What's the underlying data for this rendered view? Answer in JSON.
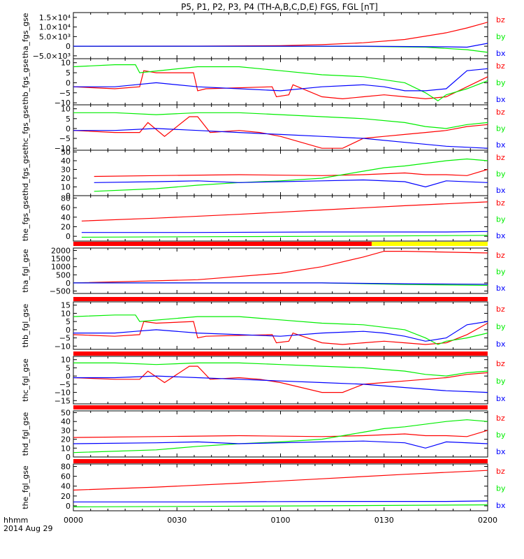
{
  "title": "P5, P1, P2, P3, P4 (TH-A,B,C,D,E) FGS, FGL [nT]",
  "footer": {
    "time_label": "hhmm",
    "date_label": "2014 Aug 29"
  },
  "x_ticks": [
    "0000",
    "0030",
    "0100",
    "0130",
    "0200"
  ],
  "colors": {
    "bx": "#0000ff",
    "by": "#00ee00",
    "bz": "#ff0000",
    "axis": "#000000",
    "mode_bar": "#ff0000",
    "mode_bar_alt": "#ffff00"
  },
  "chart_data": [
    {
      "type": "line",
      "ylabel": "tha_fgs_gse",
      "yticks": [
        {
          "v": 15000,
          "t": "1.5×10⁴"
        },
        {
          "v": 10000,
          "t": "1.0×10⁴"
        },
        {
          "v": 5000,
          "t": "5.0×10³"
        },
        {
          "v": 0,
          "t": "0"
        },
        {
          "v": -5000,
          "t": "−5.0×10³"
        }
      ],
      "ylim": [
        -6500,
        17500
      ],
      "x_range": [
        0.0,
        1.0
      ],
      "series": [
        {
          "name": "bz",
          "x": [
            0.0,
            0.3,
            0.5,
            0.6,
            0.7,
            0.8,
            0.9,
            0.95,
            1.0
          ],
          "y": [
            0,
            50,
            300,
            800,
            1800,
            3500,
            7000,
            9500,
            12500
          ]
        },
        {
          "name": "by",
          "x": [
            0.0,
            0.5,
            0.7,
            0.85,
            0.95,
            1.0
          ],
          "y": [
            0,
            0,
            -100,
            -500,
            -1800,
            -3200
          ]
        },
        {
          "name": "bx",
          "x": [
            0.0,
            0.5,
            0.7,
            0.9,
            0.95,
            1.0
          ],
          "y": [
            0,
            0,
            0,
            -300,
            -500,
            1500
          ]
        }
      ]
    },
    {
      "type": "line",
      "ylabel": "thb_fgs_gse",
      "yticks": [
        {
          "v": 10,
          "t": "10"
        },
        {
          "v": 5,
          "t": "5"
        },
        {
          "v": 0,
          "t": "0"
        },
        {
          "v": -5,
          "t": "−5"
        },
        {
          "v": -10,
          "t": "−10"
        }
      ],
      "ylim": [
        -11,
        12
      ],
      "x_range": [
        0.0,
        1.0
      ],
      "series": [
        {
          "name": "bz",
          "x": [
            0.0,
            0.1,
            0.16,
            0.17,
            0.2,
            0.29,
            0.3,
            0.32,
            0.48,
            0.49,
            0.52,
            0.53,
            0.6,
            0.65,
            0.7,
            0.75,
            0.8,
            0.85,
            0.9,
            0.95,
            1.0
          ],
          "y": [
            -2,
            -3,
            -2,
            6,
            5,
            5,
            -4,
            -3,
            -2,
            -7,
            -6,
            -1,
            -7,
            -8,
            -7,
            -6,
            -7,
            -8,
            -7,
            -2,
            3
          ]
        },
        {
          "name": "by",
          "x": [
            0.0,
            0.1,
            0.15,
            0.16,
            0.3,
            0.4,
            0.5,
            0.6,
            0.7,
            0.8,
            0.85,
            0.88,
            0.9,
            0.95,
            1.0
          ],
          "y": [
            8,
            9,
            9,
            5,
            8,
            8,
            6,
            4,
            3,
            0,
            -5,
            -9,
            -6,
            -3,
            1
          ]
        },
        {
          "name": "bx",
          "x": [
            0.0,
            0.1,
            0.15,
            0.2,
            0.3,
            0.4,
            0.5,
            0.6,
            0.7,
            0.75,
            0.8,
            0.85,
            0.9,
            0.95,
            1.0
          ],
          "y": [
            -2,
            -2,
            -1,
            0,
            -2,
            -3,
            -4,
            -2,
            -1,
            -2,
            -4,
            -4,
            -3,
            6,
            7
          ]
        }
      ]
    },
    {
      "type": "line",
      "ylabel": "thc_fgs_gse",
      "yticks": [
        {
          "v": 10,
          "t": "10"
        },
        {
          "v": 5,
          "t": "5"
        },
        {
          "v": 0,
          "t": "0"
        },
        {
          "v": -5,
          "t": "−5"
        },
        {
          "v": -10,
          "t": "−10"
        }
      ],
      "ylim": [
        -11,
        12
      ],
      "x_range": [
        0.0,
        1.0
      ],
      "series": [
        {
          "name": "bz",
          "x": [
            0.0,
            0.1,
            0.16,
            0.18,
            0.22,
            0.28,
            0.3,
            0.33,
            0.4,
            0.45,
            0.5,
            0.6,
            0.65,
            0.7,
            0.75,
            0.8,
            0.85,
            0.9,
            0.95,
            1.0
          ],
          "y": [
            -1,
            -2,
            -2,
            3,
            -4,
            6,
            6,
            -2,
            -1,
            -2,
            -4,
            -10,
            -10,
            -5,
            -4,
            -3,
            -2,
            -1,
            1,
            2
          ]
        },
        {
          "name": "by",
          "x": [
            0.0,
            0.1,
            0.2,
            0.3,
            0.4,
            0.5,
            0.6,
            0.7,
            0.8,
            0.85,
            0.9,
            0.95,
            1.0
          ],
          "y": [
            8,
            8,
            7,
            8,
            8,
            7,
            6,
            5,
            3,
            1,
            0,
            2,
            3
          ]
        },
        {
          "name": "bx",
          "x": [
            0.0,
            0.1,
            0.2,
            0.3,
            0.4,
            0.5,
            0.6,
            0.7,
            0.8,
            0.9,
            1.0
          ],
          "y": [
            -1,
            -1,
            0,
            -1,
            -2,
            -3,
            -4,
            -5,
            -7,
            -9,
            -10
          ]
        }
      ]
    },
    {
      "type": "line",
      "ylabel": "thd_fgs_gse",
      "yticks": [
        {
          "v": 50,
          "t": "50"
        },
        {
          "v": 40,
          "t": "40"
        },
        {
          "v": 30,
          "t": "30"
        },
        {
          "v": 20,
          "t": "20"
        },
        {
          "v": 10,
          "t": "10"
        },
        {
          "v": 0,
          "t": "0"
        }
      ],
      "ylim": [
        0,
        52
      ],
      "x_range": [
        0.05,
        1.0
      ],
      "series": [
        {
          "name": "bz",
          "x": [
            0.05,
            0.2,
            0.4,
            0.6,
            0.7,
            0.8,
            0.85,
            0.9,
            0.95,
            1.0
          ],
          "y": [
            22,
            23,
            24,
            23,
            24,
            26,
            24,
            24,
            23,
            30
          ]
        },
        {
          "name": "by",
          "x": [
            0.05,
            0.2,
            0.3,
            0.4,
            0.5,
            0.6,
            0.7,
            0.75,
            0.8,
            0.9,
            0.95,
            1.0
          ],
          "y": [
            5,
            8,
            12,
            15,
            17,
            20,
            28,
            32,
            34,
            40,
            42,
            40
          ]
        },
        {
          "name": "bx",
          "x": [
            0.05,
            0.2,
            0.3,
            0.4,
            0.5,
            0.6,
            0.7,
            0.8,
            0.85,
            0.9,
            1.0
          ],
          "y": [
            15,
            16,
            17,
            15,
            16,
            17,
            18,
            16,
            10,
            17,
            15
          ]
        }
      ]
    },
    {
      "type": "line",
      "ylabel": "the_fgs_gse",
      "yticks": [
        {
          "v": 80,
          "t": "80"
        },
        {
          "v": 60,
          "t": "60"
        },
        {
          "v": 40,
          "t": "40"
        },
        {
          "v": 20,
          "t": "20"
        },
        {
          "v": 0,
          "t": "0"
        }
      ],
      "ylim": [
        -10,
        85
      ],
      "x_range": [
        0.02,
        1.0
      ],
      "series": [
        {
          "name": "bz",
          "x": [
            0.02,
            0.2,
            0.4,
            0.6,
            0.8,
            1.0
          ],
          "y": [
            32,
            38,
            46,
            55,
            64,
            72
          ]
        },
        {
          "name": "by",
          "x": [
            0.02,
            0.3,
            0.6,
            1.0
          ],
          "y": [
            -2,
            -1,
            0,
            2
          ]
        },
        {
          "name": "bx",
          "x": [
            0.02,
            0.3,
            0.6,
            0.9,
            1.0
          ],
          "y": [
            8,
            8,
            9,
            9,
            10
          ]
        }
      ]
    },
    {
      "type": "line",
      "ylabel": "tha_fgl_gse",
      "yticks": [
        {
          "v": 2000,
          "t": "2000"
        },
        {
          "v": 1500,
          "t": "1500"
        },
        {
          "v": 1000,
          "t": "1000"
        },
        {
          "v": 500,
          "t": "500"
        },
        {
          "v": 0,
          "t": "0"
        },
        {
          "v": -500,
          "t": "−500"
        }
      ],
      "ylim": [
        -650,
        2150
      ],
      "x_range": [
        0.0,
        1.0
      ],
      "series": [
        {
          "name": "bz",
          "x": [
            0.0,
            0.3,
            0.5,
            0.6,
            0.7,
            0.75,
            0.8,
            1.0
          ],
          "y": [
            0,
            200,
            600,
            1000,
            1600,
            1950,
            1950,
            1850
          ]
        },
        {
          "name": "by",
          "x": [
            0.0,
            0.6,
            0.8,
            1.0
          ],
          "y": [
            0,
            0,
            -100,
            -150
          ]
        },
        {
          "name": "bx",
          "x": [
            0.0,
            0.6,
            0.8,
            1.0
          ],
          "y": [
            0,
            0,
            -50,
            -80
          ]
        }
      ]
    },
    {
      "type": "line",
      "ylabel": "thb_fgl_gse",
      "yticks": [
        {
          "v": 15,
          "t": "15"
        },
        {
          "v": 10,
          "t": "10"
        },
        {
          "v": 5,
          "t": "5"
        },
        {
          "v": 0,
          "t": "0"
        },
        {
          "v": -5,
          "t": "−5"
        },
        {
          "v": -10,
          "t": "−10"
        }
      ],
      "ylim": [
        -12,
        17
      ],
      "x_range": [
        0.0,
        1.0
      ],
      "series": [
        {
          "name": "bz",
          "x": [
            0.0,
            0.1,
            0.16,
            0.17,
            0.2,
            0.29,
            0.3,
            0.32,
            0.48,
            0.49,
            0.52,
            0.53,
            0.6,
            0.65,
            0.7,
            0.75,
            0.8,
            0.85,
            0.9,
            0.95,
            1.0
          ],
          "y": [
            -3,
            -4,
            -3,
            5,
            4,
            5,
            -5,
            -4,
            -3,
            -8,
            -7,
            -2,
            -8,
            -9,
            -8,
            -7,
            -8,
            -9,
            -8,
            -3,
            4
          ]
        },
        {
          "name": "by",
          "x": [
            0.0,
            0.1,
            0.15,
            0.16,
            0.3,
            0.4,
            0.5,
            0.6,
            0.7,
            0.8,
            0.85,
            0.88,
            0.9,
            0.95,
            1.0
          ],
          "y": [
            8,
            9,
            9,
            5,
            8,
            8,
            6,
            4,
            3,
            0,
            -5,
            -9,
            -7,
            -5,
            -2
          ]
        },
        {
          "name": "bx",
          "x": [
            0.0,
            0.1,
            0.15,
            0.2,
            0.3,
            0.4,
            0.5,
            0.6,
            0.7,
            0.75,
            0.8,
            0.85,
            0.9,
            0.95,
            1.0
          ],
          "y": [
            -2,
            -2,
            -1,
            0,
            -2,
            -3,
            -4,
            -2,
            -1,
            -2,
            -4,
            -7,
            -5,
            3,
            5
          ]
        }
      ]
    },
    {
      "type": "line",
      "ylabel": "thc_fgl_gse",
      "yticks": [
        {
          "v": 10,
          "t": "10"
        },
        {
          "v": 5,
          "t": "5"
        },
        {
          "v": 0,
          "t": "0"
        },
        {
          "v": -5,
          "t": "−5"
        },
        {
          "v": -10,
          "t": "−10"
        },
        {
          "v": -15,
          "t": "−15"
        }
      ],
      "ylim": [
        -17,
        12
      ],
      "x_range": [
        0.0,
        1.0
      ],
      "series": [
        {
          "name": "bz",
          "x": [
            0.0,
            0.1,
            0.16,
            0.18,
            0.22,
            0.28,
            0.3,
            0.33,
            0.4,
            0.45,
            0.5,
            0.6,
            0.65,
            0.7,
            0.75,
            0.8,
            0.85,
            0.9,
            0.95,
            1.0
          ],
          "y": [
            -1,
            -2,
            -2,
            3,
            -4,
            6,
            6,
            -2,
            -1,
            -2,
            -4,
            -10,
            -10,
            -5,
            -4,
            -3,
            -2,
            -1,
            1,
            2
          ]
        },
        {
          "name": "by",
          "x": [
            0.0,
            0.1,
            0.2,
            0.3,
            0.4,
            0.5,
            0.6,
            0.7,
            0.8,
            0.85,
            0.9,
            0.95,
            1.0
          ],
          "y": [
            8,
            8,
            7,
            8,
            8,
            7,
            6,
            5,
            3,
            1,
            0,
            2,
            3
          ]
        },
        {
          "name": "bx",
          "x": [
            0.0,
            0.1,
            0.2,
            0.3,
            0.4,
            0.5,
            0.6,
            0.7,
            0.8,
            0.9,
            1.0
          ],
          "y": [
            -1,
            -1,
            0,
            -1,
            -2,
            -3,
            -4,
            -5,
            -7,
            -9,
            -10
          ]
        }
      ]
    },
    {
      "type": "line",
      "ylabel": "thd_fgl_gse",
      "yticks": [
        {
          "v": 50,
          "t": "50"
        },
        {
          "v": 40,
          "t": "40"
        },
        {
          "v": 30,
          "t": "30"
        },
        {
          "v": 20,
          "t": "20"
        },
        {
          "v": 10,
          "t": "10"
        },
        {
          "v": 0,
          "t": "0"
        }
      ],
      "ylim": [
        0,
        52
      ],
      "x_range": [
        0.0,
        1.0
      ],
      "series": [
        {
          "name": "bz",
          "x": [
            0.0,
            0.2,
            0.4,
            0.6,
            0.7,
            0.8,
            0.85,
            0.9,
            0.95,
            1.0
          ],
          "y": [
            22,
            23,
            24,
            23,
            24,
            26,
            24,
            24,
            23,
            30
          ]
        },
        {
          "name": "by",
          "x": [
            0.0,
            0.2,
            0.3,
            0.4,
            0.5,
            0.6,
            0.7,
            0.75,
            0.8,
            0.9,
            0.95,
            1.0
          ],
          "y": [
            5,
            8,
            12,
            15,
            17,
            20,
            28,
            32,
            34,
            40,
            42,
            40
          ]
        },
        {
          "name": "bx",
          "x": [
            0.0,
            0.2,
            0.3,
            0.4,
            0.5,
            0.6,
            0.7,
            0.8,
            0.85,
            0.9,
            1.0
          ],
          "y": [
            15,
            16,
            17,
            15,
            16,
            17,
            18,
            16,
            10,
            17,
            15
          ]
        }
      ]
    },
    {
      "type": "line",
      "ylabel": "the_fgl_gse",
      "yticks": [
        {
          "v": 80,
          "t": "80"
        },
        {
          "v": 60,
          "t": "60"
        },
        {
          "v": 40,
          "t": "40"
        },
        {
          "v": 20,
          "t": "20"
        },
        {
          "v": 0,
          "t": "0"
        }
      ],
      "ylim": [
        -10,
        85
      ],
      "x_range": [
        0.0,
        1.0
      ],
      "series": [
        {
          "name": "bz",
          "x": [
            0.0,
            0.2,
            0.4,
            0.6,
            0.8,
            1.0
          ],
          "y": [
            32,
            38,
            46,
            55,
            64,
            72
          ]
        },
        {
          "name": "by",
          "x": [
            0.0,
            0.3,
            0.6,
            1.0
          ],
          "y": [
            -2,
            -1,
            0,
            2
          ]
        },
        {
          "name": "bx",
          "x": [
            0.0,
            0.3,
            0.6,
            0.9,
            1.0
          ],
          "y": [
            8,
            8,
            9,
            9,
            10
          ]
        }
      ]
    }
  ]
}
